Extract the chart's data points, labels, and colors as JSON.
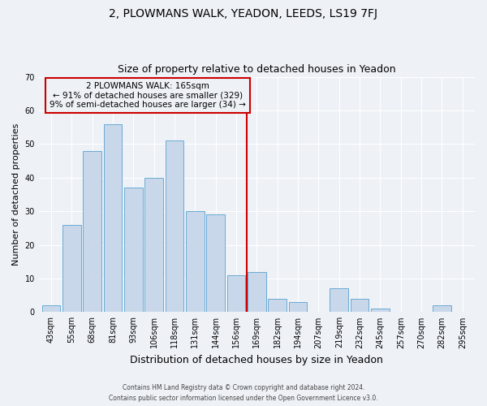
{
  "title": "2, PLOWMANS WALK, YEADON, LEEDS, LS19 7FJ",
  "subtitle": "Size of property relative to detached houses in Yeadon",
  "xlabel": "Distribution of detached houses by size in Yeadon",
  "ylabel": "Number of detached properties",
  "bin_labels": [
    "43sqm",
    "55sqm",
    "68sqm",
    "81sqm",
    "93sqm",
    "106sqm",
    "118sqm",
    "131sqm",
    "144sqm",
    "156sqm",
    "169sqm",
    "182sqm",
    "194sqm",
    "207sqm",
    "219sqm",
    "232sqm",
    "245sqm",
    "257sqm",
    "270sqm",
    "282sqm",
    "295sqm"
  ],
  "bin_values": [
    2,
    26,
    48,
    56,
    37,
    40,
    51,
    30,
    29,
    11,
    12,
    4,
    3,
    0,
    7,
    4,
    1,
    0,
    0,
    2,
    0
  ],
  "property_line_bin": 10,
  "bar_color": "#c8d8ea",
  "bar_edge_color": "#6aaad4",
  "line_color": "#cc0000",
  "ylim": [
    0,
    70
  ],
  "yticks": [
    0,
    10,
    20,
    30,
    40,
    50,
    60,
    70
  ],
  "annotation_line1": "2 PLOWMANS WALK: 165sqm",
  "annotation_line2": "← 91% of detached houses are smaller (329)",
  "annotation_line3": "9% of semi-detached houses are larger (34) →",
  "annotation_box_color": "#cc0000",
  "footer1": "Contains HM Land Registry data © Crown copyright and database right 2024.",
  "footer2": "Contains public sector information licensed under the Open Government Licence v3.0.",
  "background_color": "#eef2f7",
  "grid_color": "#ffffff",
  "title_fontsize": 10,
  "subtitle_fontsize": 9,
  "tick_fontsize": 7,
  "ylabel_fontsize": 8,
  "xlabel_fontsize": 9
}
